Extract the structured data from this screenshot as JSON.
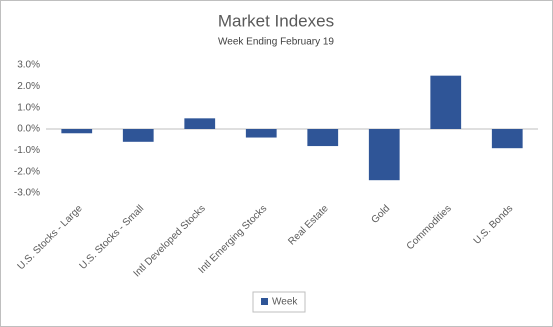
{
  "chart_data": {
    "type": "bar",
    "title": "Market Indexes",
    "subtitle": "Week Ending February 19",
    "categories": [
      "U.S. Stocks - Large",
      "U.S. Stocks - Small",
      "Intl Developed Stocks",
      "Intl Emerging Stocks",
      "Real Estate",
      "Gold",
      "Commodities",
      "U.S. Bonds"
    ],
    "series": [
      {
        "name": "Week",
        "color": "#2f5597",
        "values": [
          -0.2,
          -0.6,
          0.5,
          -0.4,
          -0.8,
          -2.4,
          2.5,
          -0.9
        ]
      }
    ],
    "ylim": [
      -3,
      3
    ],
    "yticks": [
      {
        "value": -3,
        "label": "-3.0%"
      },
      {
        "value": -2,
        "label": "-2.0%"
      },
      {
        "value": -1,
        "label": "-1.0%"
      },
      {
        "value": 0,
        "label": "0.0%"
      },
      {
        "value": 1,
        "label": "1.0%"
      },
      {
        "value": 2,
        "label": "2.0%"
      },
      {
        "value": 3,
        "label": "3.0%"
      }
    ],
    "grid": false,
    "legend": "bottom"
  }
}
